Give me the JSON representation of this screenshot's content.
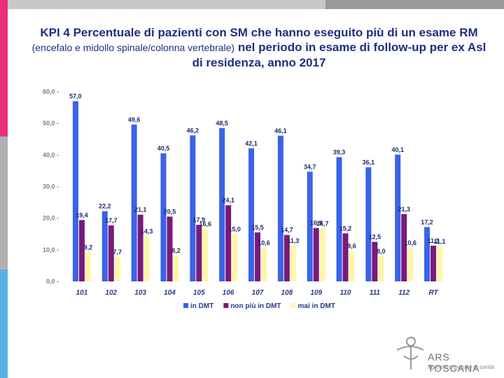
{
  "title": {
    "part1": "KPI 4 Percentuale di pazienti con SM che hanno eseguito più di un esame RM",
    "part2": "(encefalo e midollo spinale/colonna vertebrale)",
    "part3": "nel periodo in esame di follow-up per ex Asl di residenza, anno 2017"
  },
  "colors": {
    "bar_blue": "#3a63e8",
    "bar_purple": "#7a1a7c",
    "bar_yellow": "#fff6a8",
    "title": "#1f2f7f",
    "topbar_light": "#c8c8c8",
    "topbar_dark": "#9a9a9a",
    "side_pink": "#e8317a",
    "side_gray": "#b0b0b0",
    "side_blue": "#56b0e0"
  },
  "chart_data": {
    "type": "bar",
    "categories": [
      "101",
      "102",
      "103",
      "104",
      "105",
      "106",
      "107",
      "108",
      "109",
      "110",
      "111",
      "112",
      "RT"
    ],
    "series": [
      {
        "name": "in DMT",
        "color": "#3a63e8",
        "values": [
          57.0,
          22.2,
          49.6,
          40.5,
          46.2,
          48.5,
          42.1,
          46.1,
          34.7,
          39.3,
          36.1,
          40.1,
          17.2
        ],
        "labels": [
          "57,0",
          "22,2",
          "49,6",
          "40,5",
          "46,2",
          "48,5",
          "42,1",
          "46,1",
          "34,7",
          "39,3",
          "36,1",
          "40,1",
          "17,2"
        ]
      },
      {
        "name": "non più in DMT",
        "color": "#7a1a7c",
        "values": [
          19.4,
          17.7,
          21.1,
          20.5,
          17.9,
          24.1,
          15.5,
          14.7,
          16.9,
          15.2,
          12.5,
          21.3,
          11.3
        ],
        "labels": [
          "19,4",
          "17,7",
          "21,1",
          "20,5",
          "17,9",
          "24,1",
          "15,5",
          "14,7",
          "16,9",
          "15,2",
          "12,5",
          "21,3",
          "11,3"
        ]
      },
      {
        "name": "mai in DMT",
        "color": "#fff6a8",
        "values": [
          9.2,
          7.7,
          14.3,
          8.2,
          16.6,
          15.0,
          10.6,
          11.3,
          16.7,
          9.6,
          8.0,
          10.6,
          11.1
        ],
        "labels": [
          "9,2",
          "7,7",
          "14,3",
          "8,2",
          "16,6",
          "15,0",
          "10,6",
          "11,3",
          "16,7",
          "9,6",
          "8,0",
          "10,6",
          "11,1"
        ]
      }
    ],
    "ylim": [
      0,
      60
    ],
    "yticks": [
      "0,0",
      "10,0",
      "20,0",
      "30,0",
      "40,0",
      "50,0",
      "60,0"
    ],
    "legend": [
      "in DMT",
      "non più in DMT",
      "mai in DMT"
    ],
    "grid": false
  },
  "logo": {
    "name": "ARS TOSCANA",
    "subtitle": "agenzia regionale di sanità"
  }
}
